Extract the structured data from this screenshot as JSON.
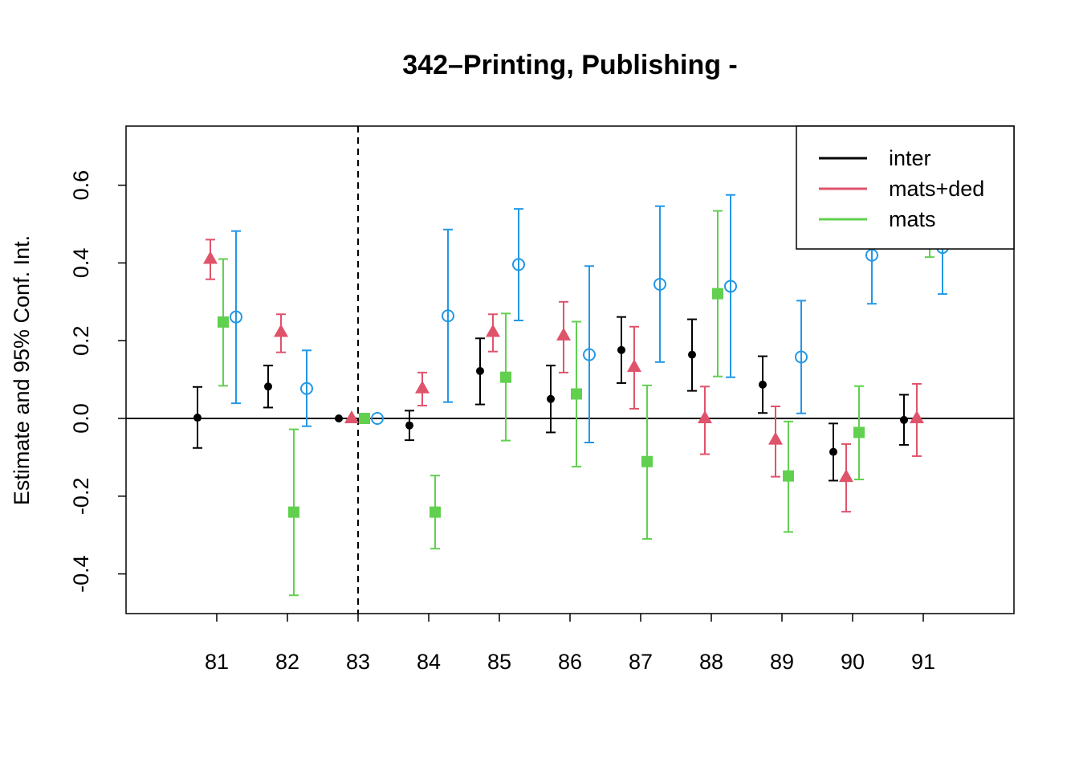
{
  "chart_data": {
    "type": "scatter",
    "title": "342–Printing, Publishing -",
    "xlabel": "",
    "ylabel": "Estimate and 95% Conf. Int.",
    "categories": [
      "81",
      "82",
      "83",
      "84",
      "85",
      "86",
      "87",
      "88",
      "89",
      "90",
      "91"
    ],
    "reference_category": "83",
    "ylim": [
      -0.5,
      0.75
    ],
    "y_ticks": [
      "-0.4",
      "-0.2",
      "0.0",
      "0.2",
      "0.4",
      "0.6"
    ],
    "grid": false,
    "legend_position": "top-right",
    "legend": [
      {
        "label": "inter",
        "color": "#000000"
      },
      {
        "label": "mats+ded",
        "color": "#DF536B"
      },
      {
        "label": "mats",
        "color": "#61D04F"
      }
    ],
    "series": [
      {
        "name": "inter",
        "color": "#000000",
        "marker": "dot",
        "est": [
          0.002,
          0.082,
          0.0,
          -0.018,
          0.122,
          0.05,
          0.176,
          0.164,
          0.087,
          -0.086,
          -0.004
        ],
        "lower": [
          -0.076,
          0.028,
          null,
          -0.056,
          0.036,
          -0.036,
          0.091,
          0.071,
          0.014,
          -0.16,
          -0.068
        ],
        "upper": [
          0.081,
          0.136,
          null,
          0.02,
          0.206,
          0.136,
          0.261,
          0.255,
          0.16,
          -0.013,
          0.061
        ]
      },
      {
        "name": "mats+ded",
        "color": "#DF536B",
        "marker": "triangle",
        "est": [
          0.41,
          0.222,
          0.0,
          0.077,
          0.222,
          0.213,
          0.132,
          0.0,
          -0.055,
          -0.151,
          0.0
        ],
        "lower": [
          0.358,
          0.17,
          null,
          0.033,
          0.172,
          0.118,
          0.025,
          -0.092,
          -0.15,
          -0.24,
          -0.097
        ],
        "upper": [
          0.46,
          0.268,
          null,
          0.118,
          0.268,
          0.3,
          0.236,
          0.082,
          0.031,
          -0.066,
          0.089
        ]
      },
      {
        "name": "mats",
        "color": "#61D04F",
        "marker": "square",
        "est": [
          0.248,
          -0.241,
          0.0,
          -0.241,
          0.106,
          0.063,
          -0.111,
          0.321,
          -0.148,
          -0.036,
          0.475
        ],
        "lower": [
          0.084,
          -0.455,
          null,
          -0.335,
          -0.057,
          -0.124,
          -0.31,
          0.108,
          -0.292,
          -0.157,
          0.415
        ],
        "upper": [
          0.41,
          -0.028,
          null,
          -0.147,
          0.27,
          0.249,
          0.085,
          0.534,
          -0.008,
          0.083,
          0.54
        ]
      },
      {
        "color": "#2297E6",
        "marker": "circle",
        "est": [
          0.261,
          0.077,
          0.0,
          0.264,
          0.396,
          0.164,
          0.345,
          0.34,
          0.158,
          0.42,
          0.44
        ],
        "lower": [
          0.039,
          -0.02,
          null,
          0.042,
          0.252,
          -0.062,
          0.145,
          0.106,
          0.013,
          0.295,
          0.32
        ],
        "upper": [
          0.482,
          0.175,
          null,
          0.486,
          0.539,
          0.392,
          0.546,
          0.575,
          0.303,
          0.56,
          0.56
        ]
      }
    ]
  }
}
